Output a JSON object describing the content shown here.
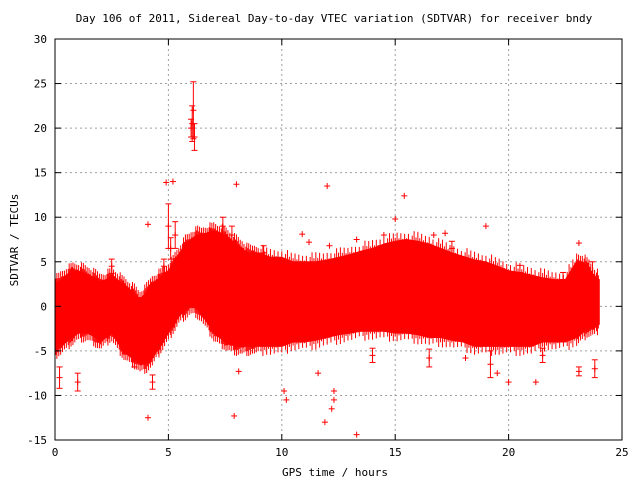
{
  "chart_data": {
    "type": "scatter",
    "title": "Day 106 of 2011, Sidereal Day-to-day VTEC variation (SDTVAR) for receiver bndy",
    "xlabel": "GPS time / hours",
    "ylabel": "SDTVAR / TECUs",
    "xlim": [
      0,
      25
    ],
    "ylim": [
      -15,
      30
    ],
    "x_ticks": [
      0,
      5,
      10,
      15,
      20,
      25
    ],
    "y_ticks": [
      -15,
      -10,
      -5,
      0,
      5,
      10,
      15,
      20,
      25,
      30
    ],
    "x_tick_labels": [
      "0",
      "5",
      "10",
      "15",
      "20",
      "25"
    ],
    "y_tick_labels": [
      "-15",
      "-10",
      "-5",
      "0",
      "5",
      "10",
      "15",
      "20",
      "25",
      "30"
    ],
    "grid": true,
    "legend": "none",
    "marker": "plus with error bars",
    "series_color": "#ff0000",
    "band_envelope": {
      "x": [
        0,
        0.25,
        0.5,
        0.75,
        1.0,
        1.25,
        1.5,
        1.75,
        2.0,
        2.25,
        2.5,
        2.75,
        3.0,
        3.25,
        3.5,
        3.75,
        4.0,
        4.25,
        4.5,
        4.75,
        5.0,
        5.25,
        5.5,
        5.75,
        6.0,
        6.25,
        6.5,
        6.75,
        7.0,
        7.25,
        7.5,
        7.75,
        8.0,
        8.25,
        8.5,
        8.75,
        9.0,
        9.5,
        10.0,
        10.5,
        11.0,
        11.5,
        12.0,
        12.5,
        13.0,
        13.5,
        14.0,
        14.5,
        15.0,
        15.5,
        16.0,
        16.5,
        17.0,
        17.5,
        18.0,
        18.5,
        19.0,
        19.5,
        20.0,
        20.5,
        21.0,
        21.5,
        22.0,
        22.5,
        23.0,
        23.25,
        23.5,
        23.75,
        24.0
      ],
      "upper": [
        2.5,
        3.0,
        3.5,
        4.0,
        4.0,
        3.8,
        3.5,
        3.2,
        2.8,
        3.0,
        3.5,
        3.0,
        2.5,
        2.0,
        1.5,
        0.8,
        1.5,
        2.5,
        3.0,
        3.5,
        4.0,
        5.0,
        6.0,
        7.0,
        7.5,
        8.0,
        8.0,
        8.3,
        8.5,
        8.3,
        8.0,
        7.5,
        7.0,
        6.5,
        6.0,
        6.0,
        6.0,
        5.5,
        5.5,
        5.0,
        5.0,
        5.0,
        5.2,
        5.5,
        5.8,
        6.2,
        6.5,
        7.0,
        7.3,
        7.5,
        7.3,
        7.0,
        6.5,
        6.0,
        5.6,
        5.2,
        5.0,
        4.5,
        4.0,
        3.8,
        3.5,
        3.2,
        3.0,
        3.0,
        5.0,
        5.0,
        4.5,
        3.5,
        3.0
      ],
      "lower": [
        -5.0,
        -4.5,
        -4.0,
        -3.5,
        -3.0,
        -3.0,
        -3.0,
        -3.5,
        -4.0,
        -3.5,
        -3.0,
        -4.0,
        -5.0,
        -5.5,
        -6.0,
        -6.5,
        -6.5,
        -6.0,
        -5.0,
        -4.0,
        -3.0,
        -2.0,
        -1.0,
        -0.5,
        0.0,
        -0.3,
        -1.0,
        -2.0,
        -3.0,
        -3.5,
        -4.0,
        -4.3,
        -4.5,
        -4.5,
        -4.5,
        -4.5,
        -4.5,
        -4.5,
        -4.5,
        -4.0,
        -4.0,
        -3.8,
        -3.5,
        -3.2,
        -3.0,
        -2.8,
        -2.8,
        -2.8,
        -3.0,
        -3.0,
        -3.2,
        -3.5,
        -3.5,
        -3.8,
        -4.0,
        -4.5,
        -4.5,
        -4.5,
        -4.5,
        -4.5,
        -4.5,
        -4.0,
        -4.0,
        -4.0,
        -3.5,
        -3.0,
        -2.5,
        -2.5,
        -2.0
      ]
    },
    "points": [
      {
        "x": 6.1,
        "y": 22.0,
        "err": 3.2
      },
      {
        "x": 6.05,
        "y": 20.5,
        "err": 2.0
      },
      {
        "x": 6.15,
        "y": 19.0,
        "err": 1.5
      },
      {
        "x": 6.0,
        "y": 20.0,
        "err": 1.0
      },
      {
        "x": 4.1,
        "y": 9.2,
        "err": 0.0
      },
      {
        "x": 4.1,
        "y": -12.5,
        "err": 0.0
      },
      {
        "x": 4.3,
        "y": -8.5,
        "err": 0.8
      },
      {
        "x": 4.8,
        "y": 4.5,
        "err": 0.8
      },
      {
        "x": 4.9,
        "y": 13.9,
        "err": 0.0
      },
      {
        "x": 5.2,
        "y": 14.0,
        "err": 0.0
      },
      {
        "x": 5.0,
        "y": 9.0,
        "err": 2.5
      },
      {
        "x": 5.3,
        "y": 8.0,
        "err": 1.5
      },
      {
        "x": 5.1,
        "y": 6.5,
        "err": 1.2
      },
      {
        "x": 7.4,
        "y": 9.0,
        "err": 1.0
      },
      {
        "x": 7.8,
        "y": 8.0,
        "err": 1.0
      },
      {
        "x": 8.0,
        "y": 13.7,
        "err": 0.0
      },
      {
        "x": 7.9,
        "y": -12.3,
        "err": 0.0
      },
      {
        "x": 8.1,
        "y": -7.3,
        "err": 0.0
      },
      {
        "x": 10.1,
        "y": -9.5,
        "err": 0.0
      },
      {
        "x": 10.2,
        "y": -10.5,
        "err": 0.0
      },
      {
        "x": 10.9,
        "y": 8.1,
        "err": 0.0
      },
      {
        "x": 11.2,
        "y": 7.2,
        "err": 0.0
      },
      {
        "x": 11.6,
        "y": -7.5,
        "err": 0.0
      },
      {
        "x": 11.9,
        "y": -13.0,
        "err": 0.0
      },
      {
        "x": 12.0,
        "y": 13.5,
        "err": 0.0
      },
      {
        "x": 12.1,
        "y": 6.8,
        "err": 0.0
      },
      {
        "x": 12.2,
        "y": -11.5,
        "err": 0.0
      },
      {
        "x": 12.3,
        "y": -10.5,
        "err": 0.0
      },
      {
        "x": 12.3,
        "y": -9.5,
        "err": 0.0
      },
      {
        "x": 13.3,
        "y": 7.5,
        "err": 0.0
      },
      {
        "x": 13.3,
        "y": -14.4,
        "err": 0.0
      },
      {
        "x": 14.5,
        "y": 8.0,
        "err": 0.0
      },
      {
        "x": 15.0,
        "y": 9.8,
        "err": 0.0
      },
      {
        "x": 15.4,
        "y": 12.4,
        "err": 0.0
      },
      {
        "x": 16.7,
        "y": 8.0,
        "err": 0.0
      },
      {
        "x": 17.2,
        "y": 8.2,
        "err": 0.0
      },
      {
        "x": 18.1,
        "y": -5.8,
        "err": 0.0
      },
      {
        "x": 19.0,
        "y": 9.0,
        "err": 0.0
      },
      {
        "x": 19.2,
        "y": -6.5,
        "err": 1.5
      },
      {
        "x": 19.5,
        "y": -7.5,
        "err": 0.0
      },
      {
        "x": 20.0,
        "y": -8.5,
        "err": 0.0
      },
      {
        "x": 21.2,
        "y": -8.5,
        "err": 0.0
      },
      {
        "x": 23.1,
        "y": 7.1,
        "err": 0.0
      },
      {
        "x": 23.1,
        "y": -7.3,
        "err": 0.5
      },
      {
        "x": 23.7,
        "y": 3.5,
        "err": 1.5
      },
      {
        "x": 23.8,
        "y": -7.0,
        "err": 1.0
      },
      {
        "x": 0.2,
        "y": -8.0,
        "err": 1.2
      },
      {
        "x": 1.0,
        "y": -8.5,
        "err": 1.0
      },
      {
        "x": 2.5,
        "y": 4.5,
        "err": 0.8
      },
      {
        "x": 3.5,
        "y": -6.0,
        "err": 0.8
      },
      {
        "x": 9.2,
        "y": 6.0,
        "err": 0.8
      },
      {
        "x": 14.0,
        "y": -5.5,
        "err": 0.8
      },
      {
        "x": 16.5,
        "y": -5.8,
        "err": 1.0
      },
      {
        "x": 17.5,
        "y": 6.5,
        "err": 0.8
      },
      {
        "x": 20.5,
        "y": 3.8,
        "err": 0.8
      },
      {
        "x": 21.5,
        "y": -5.5,
        "err": 0.8
      },
      {
        "x": 22.4,
        "y": 3.0,
        "err": 0.8
      }
    ]
  }
}
